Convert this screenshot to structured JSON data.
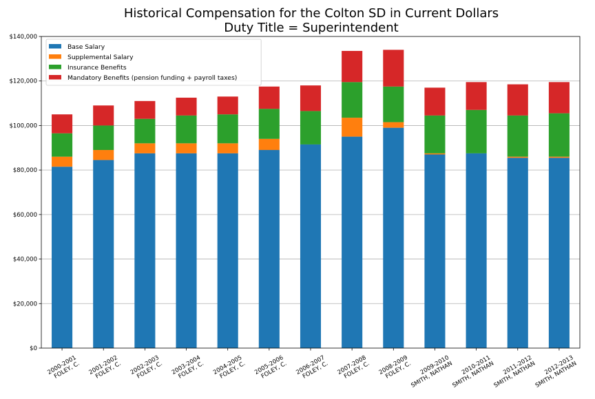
{
  "chart_data": {
    "type": "bar",
    "stacked": true,
    "title": "Historical Compensation for the Colton SD in Current Dollars",
    "subtitle": "Duty Title = Superintendent",
    "xlabel": "",
    "ylabel": "",
    "ylim": [
      0,
      140000
    ],
    "yticks": [
      0,
      20000,
      40000,
      60000,
      80000,
      100000,
      120000,
      140000
    ],
    "ytick_labels": [
      "$0",
      "$20,000",
      "$40,000",
      "$60,000",
      "$80,000",
      "$100,000",
      "$120,000",
      "$140,000"
    ],
    "grid": "horizontal",
    "legend_position": "top-left",
    "categories": [
      [
        "2000-2001",
        "FOLEY, C."
      ],
      [
        "2001-2002",
        "FOLEY, C."
      ],
      [
        "2002-2003",
        "FOLEY, C."
      ],
      [
        "2003-2004",
        "FOLEY, C."
      ],
      [
        "2004-2005",
        "FOLEY, C."
      ],
      [
        "2005-2006",
        "FOLEY, C."
      ],
      [
        "2006-2007",
        "FOLEY, C."
      ],
      [
        "2007-2008",
        "FOLEY, C."
      ],
      [
        "2008-2009",
        "FOLEY, C."
      ],
      [
        "2009-2010",
        "SMITH, NATHAN"
      ],
      [
        "2010-2011",
        "SMITH, NATHAN"
      ],
      [
        "2011-2012",
        "SMITH, NATHAN"
      ],
      [
        "2012-2013",
        "SMITH, NATHAN"
      ]
    ],
    "series": [
      {
        "name": "Base Salary",
        "color": "#1f77b4",
        "values": [
          81500,
          84500,
          87500,
          87500,
          87500,
          89000,
          91500,
          95000,
          99000,
          87000,
          87500,
          85500,
          85500
        ]
      },
      {
        "name": "Supplemental Salary",
        "color": "#ff7f0e",
        "values": [
          4500,
          4500,
          4500,
          4500,
          4500,
          5000,
          0,
          8500,
          2500,
          500,
          0,
          500,
          500
        ]
      },
      {
        "name": "Insurance Benefits",
        "color": "#2ca02c",
        "values": [
          10500,
          11000,
          11000,
          12500,
          13000,
          13500,
          15000,
          16000,
          16000,
          17000,
          19500,
          18500,
          19500
        ]
      },
      {
        "name": "Mandatory Benefits (pension funding + payroll taxes)",
        "color": "#d62728",
        "values": [
          8500,
          9000,
          8000,
          8000,
          8000,
          10000,
          11500,
          14000,
          16500,
          12500,
          12500,
          14000,
          14000
        ]
      }
    ]
  }
}
